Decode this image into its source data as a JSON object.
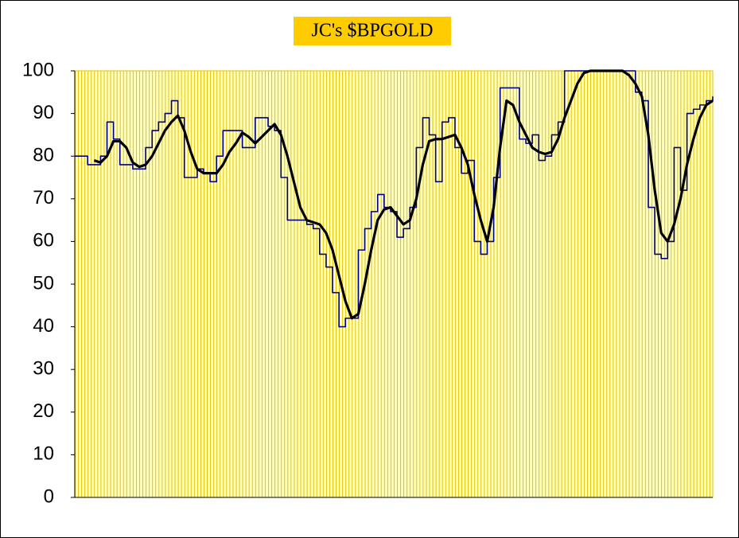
{
  "chart_data": {
    "type": "line",
    "title": "JC's $BPGOLD",
    "ylim": [
      0,
      100
    ],
    "yticks": [
      0,
      10,
      20,
      30,
      40,
      50,
      60,
      70,
      80,
      90,
      100
    ],
    "series": [
      {
        "color": "#000080",
        "width": 1.6,
        "values": [
          80,
          80,
          78,
          78,
          80,
          88,
          84,
          78,
          78,
          77,
          77,
          82,
          86,
          88,
          90,
          93,
          89,
          75,
          75,
          77,
          76,
          74,
          80,
          86,
          86,
          86,
          82,
          82,
          89,
          89,
          87,
          86,
          75,
          65,
          65,
          65,
          64,
          63,
          57,
          54,
          48,
          40,
          42,
          42,
          58,
          63,
          67,
          71,
          68,
          67,
          61,
          63,
          68,
          82,
          89,
          85,
          74,
          88,
          89,
          82,
          76,
          79,
          60,
          57,
          60,
          75,
          96,
          96,
          96,
          84,
          83,
          85,
          79,
          80,
          85,
          88,
          100,
          100,
          100,
          100,
          100,
          100,
          100,
          100,
          100,
          100,
          100,
          95,
          93,
          68,
          57,
          56,
          60,
          82,
          72,
          90,
          91,
          92,
          93,
          94
        ]
      },
      {
        "color": "#000000",
        "width": 3.2,
        "values": [
          null,
          null,
          null,
          79,
          78.5,
          80,
          83.5,
          83.5,
          82,
          78.5,
          77.5,
          78,
          80,
          83,
          86,
          88,
          89.5,
          86,
          81,
          77,
          76,
          76,
          76,
          78,
          81,
          83,
          85.5,
          84.5,
          83,
          84.5,
          86,
          87.5,
          85,
          80,
          74,
          68,
          65,
          64.5,
          64,
          62,
          58,
          52,
          46,
          42,
          43,
          50,
          58,
          65,
          67.5,
          68,
          66,
          64,
          65,
          70,
          78,
          83.5,
          84,
          84,
          84.5,
          85,
          82,
          78,
          71,
          65,
          60,
          68,
          82,
          93,
          92,
          88,
          85,
          82,
          81,
          80.5,
          81,
          84,
          89,
          93,
          97,
          99.5,
          100,
          100,
          100,
          100,
          100,
          100,
          99,
          97,
          94,
          85,
          72,
          62,
          60,
          64,
          70,
          78,
          84,
          89,
          92,
          93
        ]
      }
    ]
  }
}
